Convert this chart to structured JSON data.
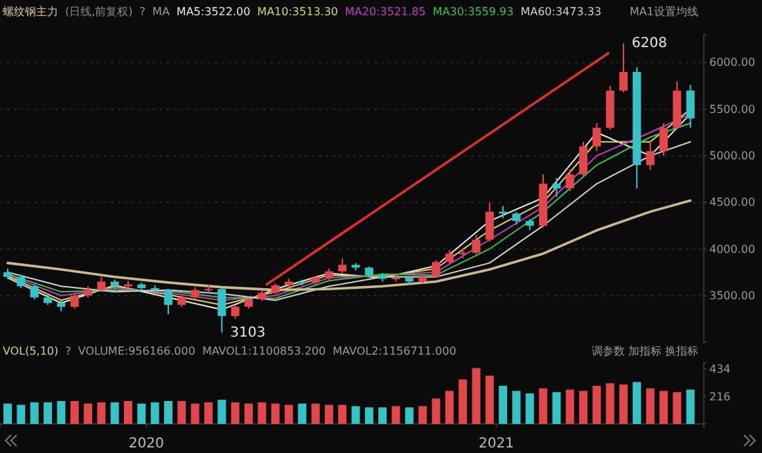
{
  "chart_data": [
    {
      "type": "candlestick",
      "title": "螺纹钢主力",
      "subtitle": "(日线,前复权)",
      "x": [
        "2019-08-09",
        "2019-08-23",
        "2019-09-06",
        "2019-09-20",
        "2019-10-04",
        "2019-10-18",
        "2019-11-01",
        "2019-11-15",
        "2019-11-29",
        "2019-12-13",
        "2019-12-27",
        "2020-01-10",
        "2020-01-24",
        "2020-02-07",
        "2020-02-21",
        "2020-03-06",
        "2020-03-20",
        "2020-04-03",
        "2020-04-17",
        "2020-05-01",
        "2020-05-15",
        "2020-05-29",
        "2020-06-12",
        "2020-06-26",
        "2020-07-10",
        "2020-07-24",
        "2020-08-07",
        "2020-08-21",
        "2020-09-04",
        "2020-09-18",
        "2020-10-02",
        "2020-10-16",
        "2020-10-30",
        "2020-11-13",
        "2020-11-27",
        "2020-12-11",
        "2020-12-25",
        "2021-01-08",
        "2021-01-22",
        "2021-02-05",
        "2021-02-19",
        "2021-03-05",
        "2021-03-19",
        "2021-04-02",
        "2021-04-16",
        "2021-04-30",
        "2021-05-14",
        "2021-05-28",
        "2021-06-11",
        "2021-06-25",
        "2021-07-09",
        "2021-07-23"
      ],
      "ohlc": [
        [
          3750,
          3790,
          3680,
          3700
        ],
        [
          3700,
          3720,
          3580,
          3600
        ],
        [
          3600,
          3620,
          3460,
          3480
        ],
        [
          3480,
          3510,
          3400,
          3420
        ],
        [
          3420,
          3450,
          3330,
          3380
        ],
        [
          3380,
          3530,
          3360,
          3500
        ],
        [
          3500,
          3600,
          3480,
          3560
        ],
        [
          3560,
          3700,
          3540,
          3650
        ],
        [
          3650,
          3670,
          3570,
          3600
        ],
        [
          3600,
          3660,
          3580,
          3620
        ],
        [
          3620,
          3640,
          3550,
          3580
        ],
        [
          3580,
          3610,
          3530,
          3560
        ],
        [
          3560,
          3570,
          3300,
          3400
        ],
        [
          3400,
          3500,
          3380,
          3480
        ],
        [
          3480,
          3590,
          3460,
          3560
        ],
        [
          3560,
          3620,
          3530,
          3570
        ],
        [
          3570,
          3580,
          3103,
          3280
        ],
        [
          3280,
          3400,
          3250,
          3380
        ],
        [
          3380,
          3480,
          3360,
          3460
        ],
        [
          3460,
          3550,
          3440,
          3530
        ],
        [
          3530,
          3630,
          3510,
          3610
        ],
        [
          3610,
          3680,
          3590,
          3650
        ],
        [
          3650,
          3670,
          3610,
          3640
        ],
        [
          3640,
          3710,
          3620,
          3690
        ],
        [
          3690,
          3790,
          3670,
          3760
        ],
        [
          3760,
          3900,
          3740,
          3830
        ],
        [
          3830,
          3850,
          3770,
          3800
        ],
        [
          3800,
          3810,
          3700,
          3720
        ],
        [
          3720,
          3740,
          3650,
          3680
        ],
        [
          3680,
          3720,
          3650,
          3690
        ],
        [
          3690,
          3700,
          3620,
          3650
        ],
        [
          3650,
          3730,
          3630,
          3700
        ],
        [
          3700,
          3880,
          3690,
          3860
        ],
        [
          3860,
          3990,
          3840,
          3950
        ],
        [
          3950,
          4000,
          3900,
          3960
        ],
        [
          3960,
          4150,
          3940,
          4100
        ],
        [
          4100,
          4500,
          4080,
          4400
        ],
        [
          4400,
          4460,
          4330,
          4380
        ],
        [
          4380,
          4400,
          4260,
          4300
        ],
        [
          4300,
          4320,
          4200,
          4250
        ],
        [
          4250,
          4800,
          4230,
          4700
        ],
        [
          4700,
          4760,
          4560,
          4650
        ],
        [
          4650,
          4850,
          4620,
          4800
        ],
        [
          4800,
          5150,
          4780,
          5100
        ],
        [
          5100,
          5350,
          5050,
          5300
        ],
        [
          5300,
          5750,
          5280,
          5700
        ],
        [
          5700,
          6208,
          5680,
          5900
        ],
        [
          5900,
          5950,
          4650,
          4900
        ],
        [
          4900,
          5150,
          4850,
          5050
        ],
        [
          5050,
          5350,
          5000,
          5300
        ],
        [
          5300,
          5800,
          5280,
          5700
        ],
        [
          5700,
          5760,
          5300,
          5400
        ]
      ],
      "series": [
        {
          "type": "line",
          "name": "MA5:3522.00",
          "color": "#e6e6e6",
          "x": [
            "2019-08-09",
            "2019-10-04",
            "2019-11-29",
            "2020-01-24",
            "2020-03-20",
            "2020-05-15",
            "2020-07-10",
            "2020-09-04",
            "2020-10-30",
            "2020-12-25",
            "2021-02-19",
            "2021-04-16",
            "2021-06-11",
            "2021-07-23"
          ],
          "values": [
            3690,
            3420,
            3610,
            3480,
            3350,
            3570,
            3740,
            3690,
            3820,
            4300,
            4550,
            5250,
            5000,
            5450
          ]
        },
        {
          "type": "line",
          "name": "MA10:3513.30",
          "color": "#d9d35a",
          "x": [
            "2019-08-09",
            "2019-10-04",
            "2019-11-29",
            "2020-01-24",
            "2020-03-20",
            "2020-05-15",
            "2020-07-10",
            "2020-09-04",
            "2020-10-30",
            "2020-12-25",
            "2021-02-19",
            "2021-04-16",
            "2021-06-11",
            "2021-07-23"
          ],
          "values": [
            3710,
            3450,
            3600,
            3510,
            3400,
            3540,
            3720,
            3700,
            3790,
            4200,
            4500,
            5150,
            5150,
            5500
          ]
        },
        {
          "type": "line",
          "name": "MA20:3521.85",
          "color": "#c23cc2",
          "x": [
            "2019-08-09",
            "2019-10-04",
            "2019-11-29",
            "2020-01-24",
            "2020-03-20",
            "2020-05-15",
            "2020-07-10",
            "2020-09-04",
            "2020-10-30",
            "2020-12-25",
            "2021-02-19",
            "2021-04-16",
            "2021-06-11",
            "2021-07-23"
          ],
          "values": [
            3720,
            3500,
            3580,
            3530,
            3450,
            3500,
            3690,
            3720,
            3750,
            4100,
            4450,
            5000,
            5250,
            5450
          ]
        },
        {
          "type": "line",
          "name": "MA30:3559.93",
          "color": "#3cbf4a",
          "x": [
            "2019-08-09",
            "2019-10-04",
            "2019-11-29",
            "2020-01-24",
            "2020-03-20",
            "2020-05-15",
            "2020-07-10",
            "2020-09-04",
            "2020-10-30",
            "2020-12-25",
            "2021-02-19",
            "2021-04-16",
            "2021-06-11",
            "2021-07-23"
          ],
          "values": [
            3730,
            3540,
            3560,
            3550,
            3480,
            3470,
            3660,
            3730,
            3720,
            4000,
            4400,
            4900,
            5200,
            5350
          ]
        },
        {
          "type": "line",
          "name": "MA60:3473.33",
          "color": "#cfcfcf",
          "x": [
            "2019-08-09",
            "2019-10-04",
            "2019-11-29",
            "2020-01-24",
            "2020-03-20",
            "2020-05-15",
            "2020-07-10",
            "2020-09-04",
            "2020-10-30",
            "2020-12-25",
            "2021-02-19",
            "2021-04-16",
            "2021-06-11",
            "2021-07-23"
          ],
          "values": [
            3750,
            3600,
            3540,
            3560,
            3520,
            3450,
            3600,
            3700,
            3700,
            3850,
            4250,
            4700,
            5000,
            5150
          ]
        },
        {
          "type": "line",
          "color": "#c9b98f",
          "x": [
            "2019-08-09",
            "2019-10-04",
            "2019-11-29",
            "2020-01-24",
            "2020-03-20",
            "2020-05-15",
            "2020-07-10",
            "2020-09-04",
            "2020-10-30",
            "2020-12-25",
            "2021-02-19",
            "2021-04-16",
            "2021-06-11",
            "2021-07-23"
          ],
          "values": [
            3850,
            3780,
            3700,
            3640,
            3590,
            3560,
            3570,
            3600,
            3650,
            3780,
            3950,
            4200,
            4400,
            4520
          ]
        },
        {
          "type": "line",
          "color": "#e0302c",
          "x": [
            "2020-05-06",
            "2021-04-28"
          ],
          "values": [
            3620,
            6100
          ]
        }
      ],
      "xlim": [
        "2019-08-01",
        "2021-08-06"
      ],
      "ylim": [
        3000,
        6300
      ],
      "yticks": [
        {
          "value": 3500,
          "label": "3500.00"
        },
        {
          "value": 4000,
          "label": "4000.00"
        },
        {
          "value": 4500,
          "label": "4500.00"
        },
        {
          "value": 5000,
          "label": "5000.00"
        },
        {
          "value": 5500,
          "label": "5500.00"
        },
        {
          "value": 6000,
          "label": "6000.00"
        }
      ],
      "grid": "y",
      "legend": "top",
      "tick_labels": "y",
      "annotations": [
        "?",
        "MA",
        "MA1设置均线",
        {
          "text": "6208",
          "x": "2021-05-14",
          "y": 6208
        },
        {
          "text": "3103",
          "x": "2020-03-20",
          "y": 3103
        }
      ]
    },
    {
      "type": "bar",
      "title": "VOL(5,10)",
      "x": [
        "2019-08-09",
        "2019-08-23",
        "2019-09-06",
        "2019-09-20",
        "2019-10-04",
        "2019-10-18",
        "2019-11-01",
        "2019-11-15",
        "2019-11-29",
        "2019-12-13",
        "2019-12-27",
        "2020-01-10",
        "2020-01-24",
        "2020-02-07",
        "2020-02-21",
        "2020-03-06",
        "2020-03-20",
        "2020-04-03",
        "2020-04-17",
        "2020-05-01",
        "2020-05-15",
        "2020-05-29",
        "2020-06-12",
        "2020-06-26",
        "2020-07-10",
        "2020-07-24",
        "2020-08-07",
        "2020-08-21",
        "2020-09-04",
        "2020-09-18",
        "2020-10-02",
        "2020-10-16",
        "2020-10-30",
        "2020-11-13",
        "2020-11-27",
        "2020-12-11",
        "2020-12-25",
        "2021-01-08",
        "2021-01-22",
        "2021-02-05",
        "2021-02-19",
        "2021-03-05",
        "2021-03-19",
        "2021-04-02",
        "2021-04-16",
        "2021-04-30",
        "2021-05-14",
        "2021-05-28",
        "2021-06-11",
        "2021-06-25",
        "2021-07-09",
        "2021-07-23"
      ],
      "values": [
        160,
        150,
        170,
        170,
        180,
        180,
        160,
        170,
        170,
        180,
        160,
        170,
        180,
        180,
        160,
        170,
        190,
        170,
        160,
        170,
        160,
        150,
        160,
        160,
        150,
        150,
        140,
        130,
        130,
        140,
        130,
        140,
        200,
        260,
        350,
        440,
        380,
        300,
        260,
        240,
        280,
        250,
        270,
        260,
        300,
        320,
        310,
        330,
        280,
        260,
        250,
        270
      ],
      "colors": [
        "#36c3c6",
        "#36c3c6",
        "#36c3c6",
        "#36c3c6",
        "#36c3c6",
        "#e2474b",
        "#e2474b",
        "#e2474b",
        "#36c3c6",
        "#e2474b",
        "#36c3c6",
        "#36c3c6",
        "#36c3c6",
        "#e2474b",
        "#e2474b",
        "#e2474b",
        "#36c3c6",
        "#e2474b",
        "#e2474b",
        "#e2474b",
        "#e2474b",
        "#e2474b",
        "#36c3c6",
        "#e2474b",
        "#e2474b",
        "#e2474b",
        "#36c3c6",
        "#36c3c6",
        "#36c3c6",
        "#e2474b",
        "#36c3c6",
        "#e2474b",
        "#e2474b",
        "#e2474b",
        "#e2474b",
        "#e2474b",
        "#e2474b",
        "#36c3c6",
        "#36c3c6",
        "#36c3c6",
        "#e2474b",
        "#36c3c6",
        "#e2474b",
        "#e2474b",
        "#e2474b",
        "#e2474b",
        "#e2474b",
        "#36c3c6",
        "#e2474b",
        "#e2474b",
        "#e2474b",
        "#36c3c6"
      ],
      "xlim": [
        "2019-08-01",
        "2021-08-06"
      ],
      "ylim": [
        0,
        480
      ],
      "yticks": [
        216,
        434
      ],
      "xticks": [
        "2020",
        "2021"
      ],
      "annotations": [
        "?",
        "VOLUME:956166.000",
        "MAVOL1:1100853.200",
        "MAVOL2:1156711.000",
        "调参数 加指标 换指标"
      ]
    }
  ]
}
